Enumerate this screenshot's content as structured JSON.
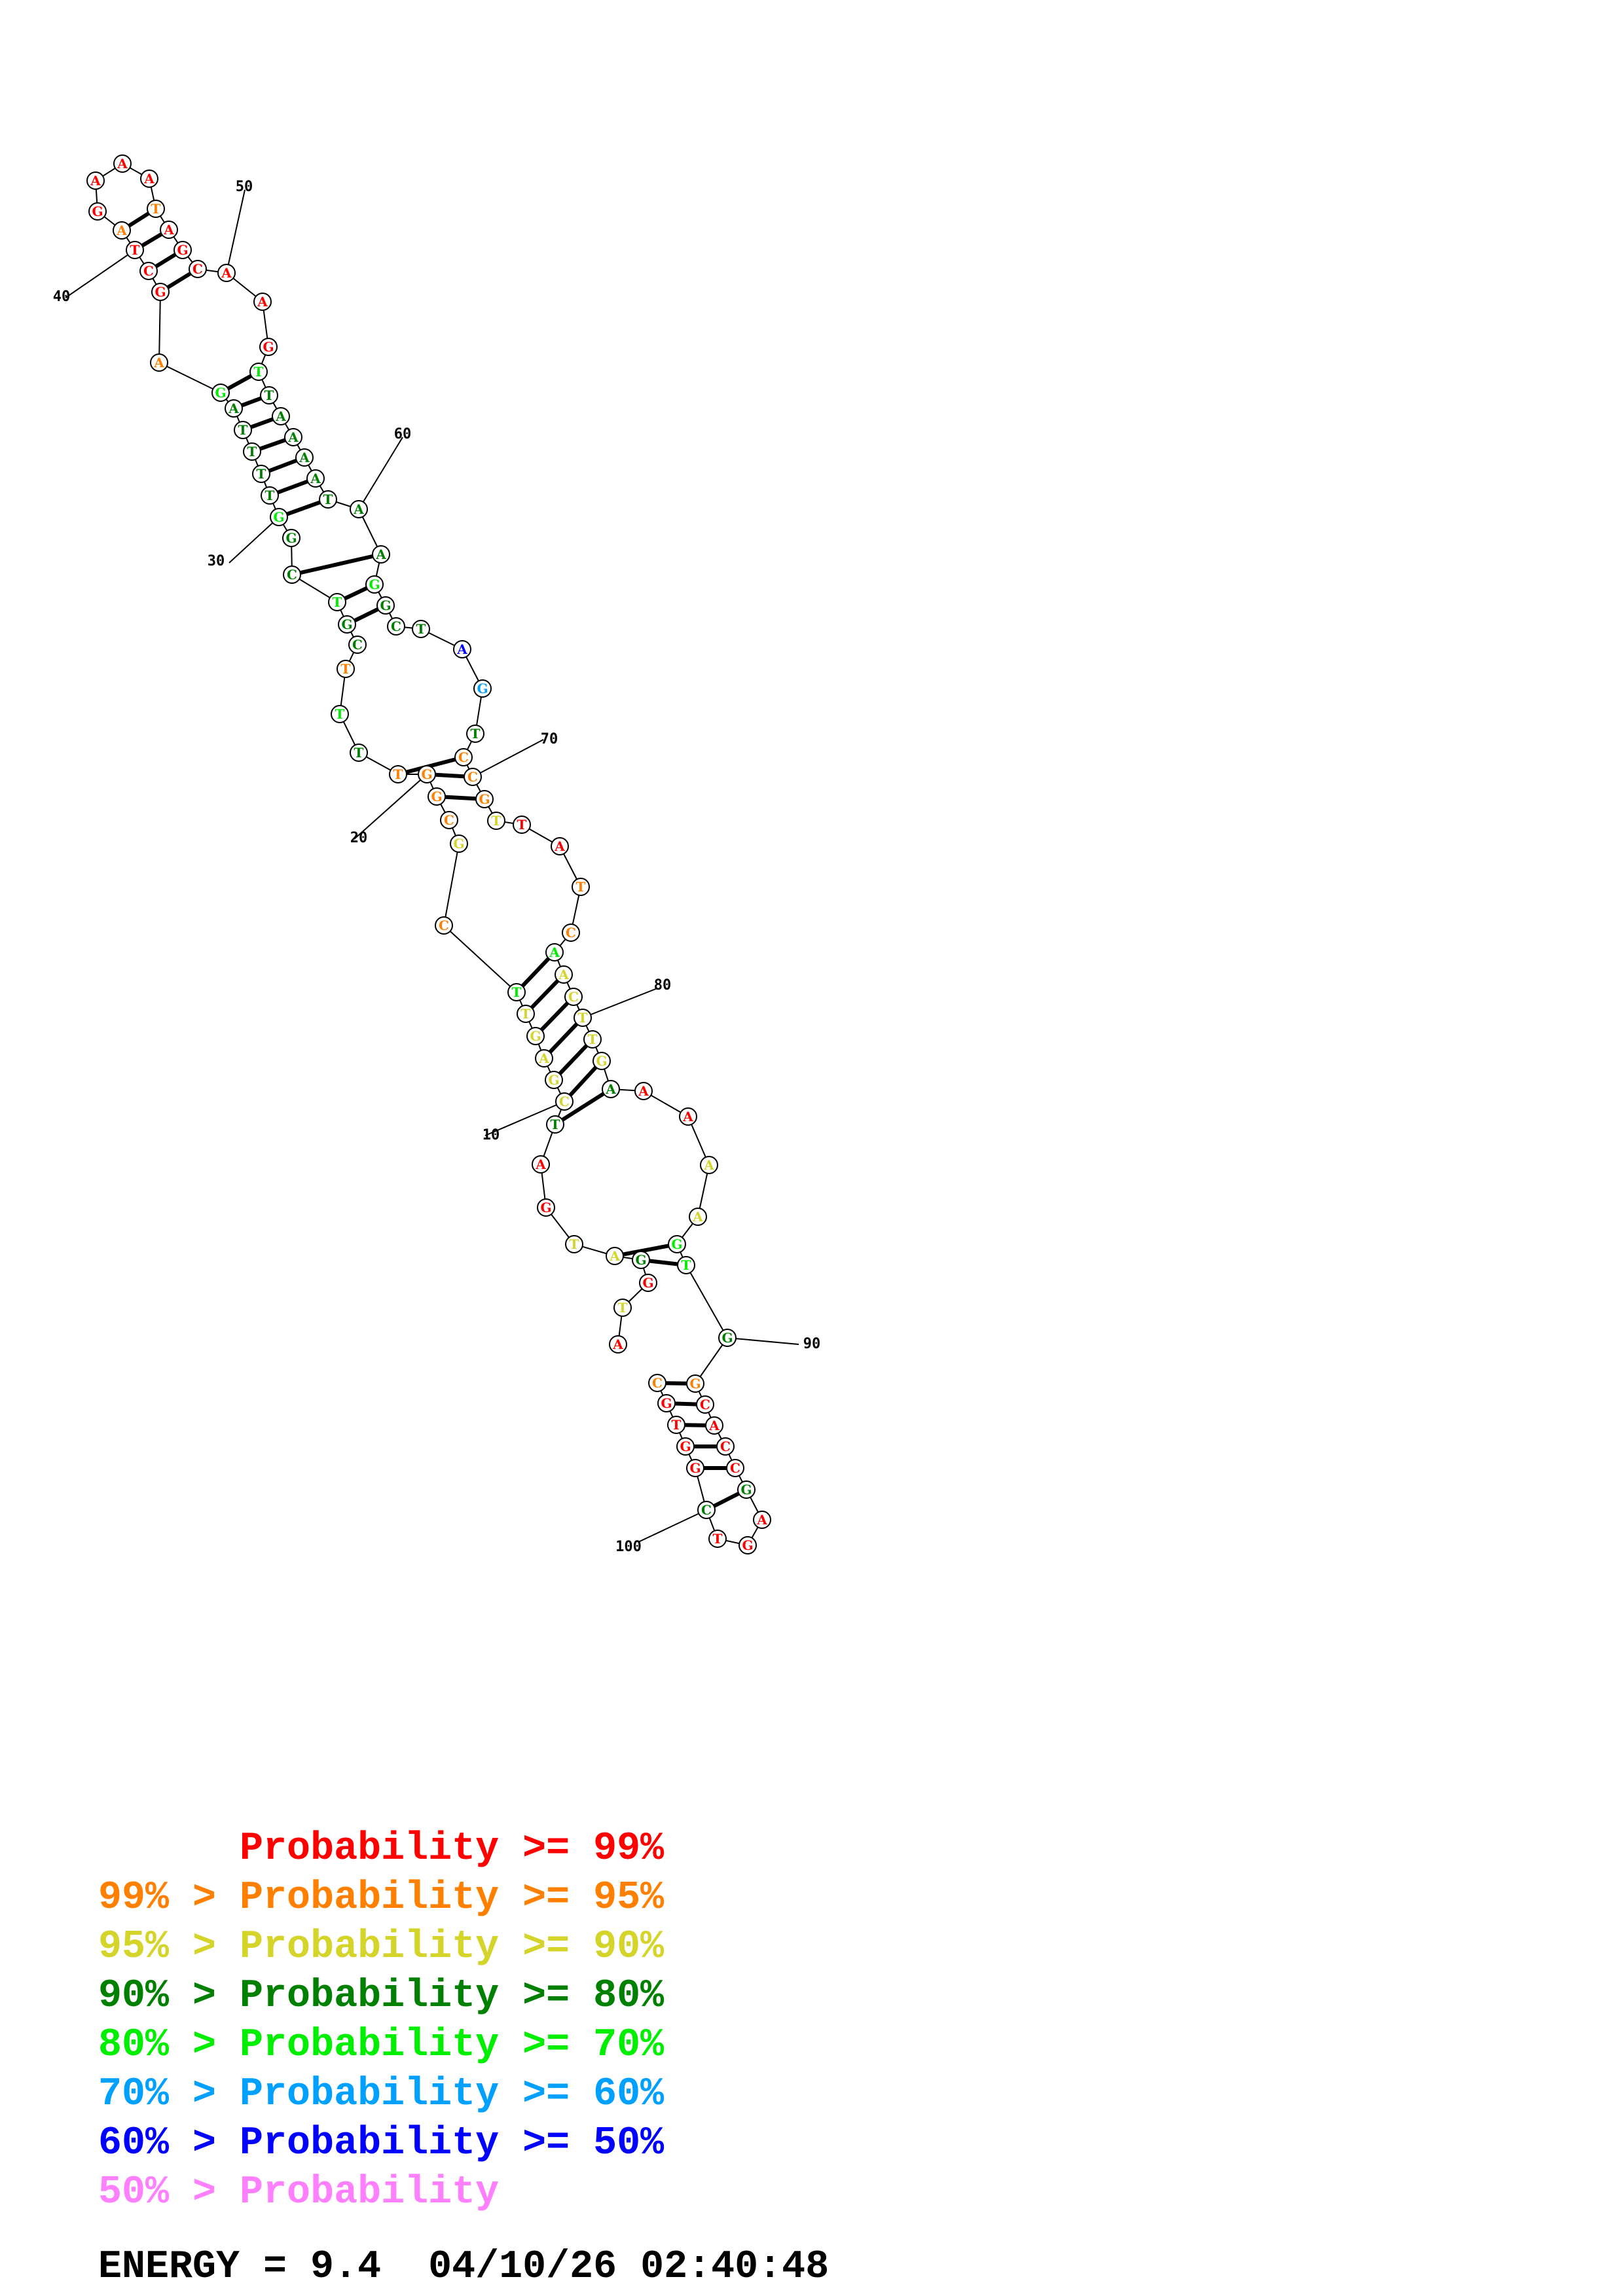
{
  "colors": {
    "p99": "#ff0000",
    "p95": "#ff8000",
    "p90": "#d4d42a",
    "p80": "#008000",
    "p70": "#00ee00",
    "p60": "#00a0ff",
    "p50": "#0000ff",
    "p0": "#ff80ff"
  },
  "bases": [
    {
      "n": 1,
      "b": "A",
      "c": "p99"
    },
    {
      "n": 2,
      "b": "T",
      "c": "p90"
    },
    {
      "n": 3,
      "b": "G",
      "c": "p99"
    },
    {
      "n": 4,
      "b": "G",
      "c": "p80"
    },
    {
      "n": 5,
      "b": "A",
      "c": "p90"
    },
    {
      "n": 6,
      "b": "T",
      "c": "p90"
    },
    {
      "n": 7,
      "b": "G",
      "c": "p99"
    },
    {
      "n": 8,
      "b": "A",
      "c": "p99"
    },
    {
      "n": 9,
      "b": "T",
      "c": "p80"
    },
    {
      "n": 10,
      "b": "C",
      "c": "p90"
    },
    {
      "n": 11,
      "b": "G",
      "c": "p90"
    },
    {
      "n": 12,
      "b": "A",
      "c": "p90"
    },
    {
      "n": 13,
      "b": "G",
      "c": "p90"
    },
    {
      "n": 14,
      "b": "T",
      "c": "p90"
    },
    {
      "n": 15,
      "b": "T",
      "c": "p70"
    },
    {
      "n": 16,
      "b": "C",
      "c": "p95"
    },
    {
      "n": 17,
      "b": "G",
      "c": "p90"
    },
    {
      "n": 18,
      "b": "C",
      "c": "p95"
    },
    {
      "n": 19,
      "b": "G",
      "c": "p95"
    },
    {
      "n": 20,
      "b": "G",
      "c": "p95"
    },
    {
      "n": 21,
      "b": "T",
      "c": "p95"
    },
    {
      "n": 22,
      "b": "T",
      "c": "p80"
    },
    {
      "n": 23,
      "b": "T",
      "c": "p70"
    },
    {
      "n": 24,
      "b": "T",
      "c": "p95"
    },
    {
      "n": 25,
      "b": "C",
      "c": "p80"
    },
    {
      "n": 26,
      "b": "G",
      "c": "p80"
    },
    {
      "n": 27,
      "b": "T",
      "c": "p70"
    },
    {
      "n": 28,
      "b": "C",
      "c": "p80"
    },
    {
      "n": 29,
      "b": "G",
      "c": "p80"
    },
    {
      "n": 30,
      "b": "G",
      "c": "p70"
    },
    {
      "n": 31,
      "b": "T",
      "c": "p80"
    },
    {
      "n": 32,
      "b": "T",
      "c": "p80"
    },
    {
      "n": 33,
      "b": "T",
      "c": "p80"
    },
    {
      "n": 34,
      "b": "T",
      "c": "p80"
    },
    {
      "n": 35,
      "b": "A",
      "c": "p80"
    },
    {
      "n": 36,
      "b": "G",
      "c": "p70"
    },
    {
      "n": 37,
      "b": "A",
      "c": "p95"
    },
    {
      "n": 38,
      "b": "G",
      "c": "p99"
    },
    {
      "n": 39,
      "b": "C",
      "c": "p99"
    },
    {
      "n": 40,
      "b": "T",
      "c": "p99"
    },
    {
      "n": 41,
      "b": "A",
      "c": "p95"
    },
    {
      "n": 42,
      "b": "G",
      "c": "p99"
    },
    {
      "n": 43,
      "b": "A",
      "c": "p99"
    },
    {
      "n": 44,
      "b": "A",
      "c": "p99"
    },
    {
      "n": 45,
      "b": "A",
      "c": "p99"
    },
    {
      "n": 46,
      "b": "T",
      "c": "p95"
    },
    {
      "n": 47,
      "b": "A",
      "c": "p99"
    },
    {
      "n": 48,
      "b": "G",
      "c": "p99"
    },
    {
      "n": 49,
      "b": "C",
      "c": "p99"
    },
    {
      "n": 50,
      "b": "A",
      "c": "p99"
    },
    {
      "n": 51,
      "b": "A",
      "c": "p99"
    },
    {
      "n": 52,
      "b": "G",
      "c": "p99"
    },
    {
      "n": 53,
      "b": "T",
      "c": "p70"
    },
    {
      "n": 54,
      "b": "T",
      "c": "p80"
    },
    {
      "n": 55,
      "b": "A",
      "c": "p80"
    },
    {
      "n": 56,
      "b": "A",
      "c": "p80"
    },
    {
      "n": 57,
      "b": "A",
      "c": "p80"
    },
    {
      "n": 58,
      "b": "A",
      "c": "p80"
    },
    {
      "n": 59,
      "b": "T",
      "c": "p80"
    },
    {
      "n": 60,
      "b": "A",
      "c": "p80"
    },
    {
      "n": 61,
      "b": "A",
      "c": "p80"
    },
    {
      "n": 62,
      "b": "G",
      "c": "p70"
    },
    {
      "n": 63,
      "b": "G",
      "c": "p80"
    },
    {
      "n": 64,
      "b": "C",
      "c": "p80"
    },
    {
      "n": 65,
      "b": "T",
      "c": "p80"
    },
    {
      "n": 66,
      "b": "A",
      "c": "p50"
    },
    {
      "n": 67,
      "b": "G",
      "c": "p60"
    },
    {
      "n": 68,
      "b": "T",
      "c": "p80"
    },
    {
      "n": 69,
      "b": "C",
      "c": "p95"
    },
    {
      "n": 70,
      "b": "C",
      "c": "p95"
    },
    {
      "n": 71,
      "b": "G",
      "c": "p95"
    },
    {
      "n": 72,
      "b": "T",
      "c": "p90"
    },
    {
      "n": 73,
      "b": "T",
      "c": "p99"
    },
    {
      "n": 74,
      "b": "A",
      "c": "p99"
    },
    {
      "n": 75,
      "b": "T",
      "c": "p95"
    },
    {
      "n": 76,
      "b": "C",
      "c": "p95"
    },
    {
      "n": 77,
      "b": "A",
      "c": "p70"
    },
    {
      "n": 78,
      "b": "A",
      "c": "p90"
    },
    {
      "n": 79,
      "b": "C",
      "c": "p90"
    },
    {
      "n": 80,
      "b": "T",
      "c": "p90"
    },
    {
      "n": 81,
      "b": "T",
      "c": "p90"
    },
    {
      "n": 82,
      "b": "G",
      "c": "p90"
    },
    {
      "n": 83,
      "b": "A",
      "c": "p80"
    },
    {
      "n": 84,
      "b": "A",
      "c": "p99"
    },
    {
      "n": 85,
      "b": "A",
      "c": "p99"
    },
    {
      "n": 86,
      "b": "A",
      "c": "p90"
    },
    {
      "n": 87,
      "b": "A",
      "c": "p90"
    },
    {
      "n": 88,
      "b": "G",
      "c": "p70"
    },
    {
      "n": 89,
      "b": "T",
      "c": "p70"
    },
    {
      "n": 90,
      "b": "G",
      "c": "p80"
    },
    {
      "n": 91,
      "b": "G",
      "c": "p95"
    },
    {
      "n": 92,
      "b": "C",
      "c": "p99"
    },
    {
      "n": 93,
      "b": "A",
      "c": "p99"
    },
    {
      "n": 94,
      "b": "C",
      "c": "p99"
    },
    {
      "n": 95,
      "b": "C",
      "c": "p99"
    },
    {
      "n": 96,
      "b": "G",
      "c": "p80"
    },
    {
      "n": 97,
      "b": "A",
      "c": "p99"
    },
    {
      "n": 98,
      "b": "G",
      "c": "p99"
    },
    {
      "n": 99,
      "b": "T",
      "c": "p99"
    },
    {
      "n": 100,
      "b": "C",
      "c": "p80"
    },
    {
      "n": 101,
      "b": "G",
      "c": "p99"
    },
    {
      "n": 102,
      "b": "G",
      "c": "p99"
    },
    {
      "n": 103,
      "b": "T",
      "c": "p99"
    },
    {
      "n": 104,
      "b": "G",
      "c": "p99"
    },
    {
      "n": 105,
      "b": "C",
      "c": "p95"
    }
  ],
  "pairs": [
    [
      4,
      89
    ],
    [
      5,
      88
    ],
    [
      9,
      83
    ],
    [
      10,
      82
    ],
    [
      11,
      81
    ],
    [
      12,
      80
    ],
    [
      13,
      79
    ],
    [
      14,
      78
    ],
    [
      15,
      77
    ],
    [
      19,
      71
    ],
    [
      20,
      70
    ],
    [
      21,
      69
    ],
    [
      26,
      63
    ],
    [
      27,
      62
    ],
    [
      28,
      61
    ],
    [
      30,
      59
    ],
    [
      31,
      58
    ],
    [
      32,
      57
    ],
    [
      33,
      56
    ],
    [
      34,
      55
    ],
    [
      35,
      54
    ],
    [
      36,
      53
    ],
    [
      38,
      49
    ],
    [
      39,
      48
    ],
    [
      40,
      47
    ],
    [
      41,
      46
    ],
    [
      100,
      96
    ],
    [
      101,
      95
    ],
    [
      102,
      94
    ],
    [
      103,
      93
    ],
    [
      104,
      92
    ],
    [
      105,
      91
    ]
  ],
  "tick_labels": [
    {
      "n": 10,
      "text": "10"
    },
    {
      "n": 20,
      "text": "20"
    },
    {
      "n": 30,
      "text": "30"
    },
    {
      "n": 40,
      "text": "40"
    },
    {
      "n": 50,
      "text": "50"
    },
    {
      "n": 60,
      "text": "60"
    },
    {
      "n": 70,
      "text": "70"
    },
    {
      "n": 80,
      "text": "80"
    },
    {
      "n": 90,
      "text": "90"
    },
    {
      "n": 100,
      "text": "100"
    }
  ],
  "legend": [
    {
      "prefix": "",
      "main": "Probability >= 99%",
      "color": "p99"
    },
    {
      "prefix": "99% > ",
      "main": "Probability >= 95%",
      "color": "p95"
    },
    {
      "prefix": "95% > ",
      "main": "Probability >= 90%",
      "color": "p90"
    },
    {
      "prefix": "90% > ",
      "main": "Probability >= 80%",
      "color": "p80"
    },
    {
      "prefix": "80% > ",
      "main": "Probability >= 70%",
      "color": "p70"
    },
    {
      "prefix": "70% > ",
      "main": "Probability >= 60%",
      "color": "p60"
    },
    {
      "prefix": "60% > ",
      "main": "Probability >= 50%",
      "color": "p50"
    },
    {
      "prefix": "50% > ",
      "main": "Probability",
      "color": "p0"
    }
  ],
  "footer": {
    "energy": "ENERGY = 9.4",
    "timestamp": "04/10/26 02:40:48"
  }
}
